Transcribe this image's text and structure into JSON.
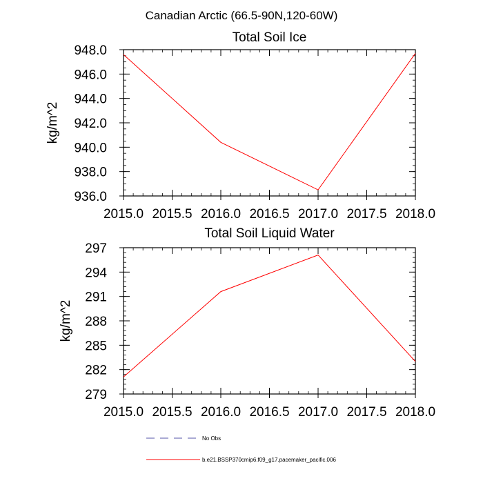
{
  "figure": {
    "title": "Canadian Arctic (66.5-90N,120-60W)"
  },
  "chart_data": [
    {
      "type": "line",
      "title": "Total Soil Ice",
      "xlabel": "",
      "ylabel": "kg/m^2",
      "xlim": [
        2015.0,
        2018.0
      ],
      "ylim": [
        936.0,
        948.0
      ],
      "xticks": [
        2015.0,
        2015.5,
        2016.0,
        2016.5,
        2017.0,
        2017.5,
        2018.0
      ],
      "xtick_labels": [
        "2015.0",
        "2015.5",
        "2016.0",
        "2016.5",
        "2017.0",
        "2017.5",
        "2018.0"
      ],
      "yticks": [
        936.0,
        938.0,
        940.0,
        942.0,
        944.0,
        946.0,
        948.0
      ],
      "ytick_labels": [
        "936.0",
        "938.0",
        "940.0",
        "942.0",
        "944.0",
        "946.0",
        "948.0"
      ],
      "series": [
        {
          "name": "b.e21.BSSP370cmip6.f09_g17.pacemaker_pacific.006",
          "color": "#ff0000",
          "x": [
            2015.0,
            2016.0,
            2017.0,
            2018.0
          ],
          "y": [
            947.6,
            940.4,
            936.5,
            947.7
          ]
        }
      ]
    },
    {
      "type": "line",
      "title": "Total Soil Liquid Water",
      "xlabel": "",
      "ylabel": "kg/m^2",
      "xlim": [
        2015.0,
        2018.0
      ],
      "ylim": [
        279,
        297
      ],
      "xticks": [
        2015.0,
        2015.5,
        2016.0,
        2016.5,
        2017.0,
        2017.5,
        2018.0
      ],
      "xtick_labels": [
        "2015.0",
        "2015.5",
        "2016.0",
        "2016.5",
        "2017.0",
        "2017.5",
        "2018.0"
      ],
      "yticks": [
        279,
        282,
        285,
        288,
        291,
        294,
        297
      ],
      "ytick_labels": [
        "279",
        "282",
        "285",
        "288",
        "291",
        "294",
        "297"
      ],
      "series": [
        {
          "name": "b.e21.BSSP370cmip6.f09_g17.pacemaker_pacific.006",
          "color": "#ff0000",
          "x": [
            2015.0,
            2016.0,
            2017.0,
            2018.0
          ],
          "y": [
            281.1,
            291.6,
            296.1,
            283.0
          ]
        }
      ]
    }
  ],
  "legend": {
    "entries": [
      {
        "label": "No Obs",
        "color": "#5555aa",
        "style": "dashed"
      },
      {
        "label": "b.e21.BSSP370cmip6.f09_g17.pacemaker_pacific.006",
        "color": "#ff0000",
        "style": "solid"
      }
    ]
  }
}
